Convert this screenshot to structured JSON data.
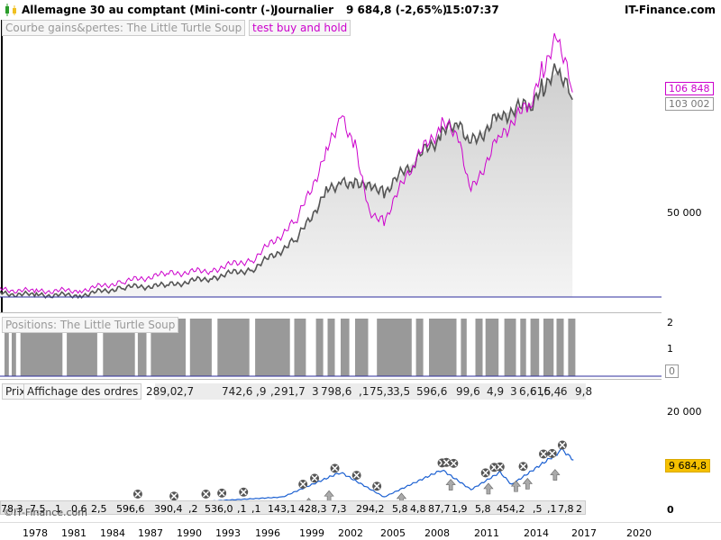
{
  "header": {
    "title": "Allemagne 30 au comptant (Mini-contr (-)",
    "period": "Journalier",
    "price_change": "9 684,8 (-2,65%)",
    "time": "15:07:37",
    "brand": "IT-Finance.com"
  },
  "panel_equity": {
    "label": "Courbe gains&pertes: The Little Turtle Soup",
    "label2": "test buy and hold",
    "axis_label": "50 000",
    "value_magenta": "106 848",
    "value_gray": "103 002"
  },
  "panel_positions": {
    "label": "Positions: The Little Turtle Soup",
    "ticks": [
      "2",
      "1",
      "0"
    ],
    "value_box": "0"
  },
  "panel_price": {
    "label_prix": "Prix",
    "label_orders": "Affichage des ordres",
    "axis_top": "20 000",
    "axis_bottom": "0",
    "value_box": "9 684,8",
    "watermark": "©IT-Finance.com",
    "position_values": [
      "289,0",
      "2,7",
      "742,6",
      ",9",
      ",2",
      "91,7",
      "3",
      "798,6",
      ",1",
      "75,3",
      "3,5",
      "596,6",
      "99,6",
      "4,9",
      "3",
      "6",
      "616,4",
      ",6",
      ",5",
      ",6",
      "9,8"
    ],
    "order_values": [
      "78,3",
      "7,5",
      "1",
      "0,6",
      "2,5",
      "596,6",
      "390,4",
      ",2",
      "536,0",
      ",1",
      ",1",
      "143,1",
      "428,3",
      "7,3",
      "294,2",
      "5,8",
      "4,8",
      "87,7",
      "1,9",
      "5,8",
      "454,2",
      ",5",
      ",1",
      "7,8",
      "2"
    ]
  },
  "x_axis": [
    "1978",
    "1981",
    "1984",
    "1987",
    "1990",
    "1993",
    "1996",
    "1999",
    "2002",
    "2005",
    "2008",
    "2011",
    "2014",
    "2017",
    "2020"
  ],
  "colors": {
    "equity": "#888888",
    "buyhold": "#cc00cc",
    "fill": "#e8e8e8",
    "baseline": "#2c2c9c",
    "price_up": "#1a5fd1",
    "price_down": "#d01010",
    "value_box_price": "#f5c000"
  },
  "chart_data": {
    "type": "line",
    "title": "",
    "x": [
      "1976",
      "1979",
      "1982",
      "1985",
      "1988",
      "1991",
      "1994",
      "1997",
      "1999",
      "2000",
      "2001",
      "2002",
      "2003",
      "2005",
      "2007",
      "2008",
      "2009",
      "2011",
      "2013",
      "2014",
      "2015",
      "2016"
    ],
    "series": [
      {
        "name": "Courbe gains&pertes: The Little Turtle Soup",
        "values": [
          2000,
          1000,
          1000,
          5000,
          6000,
          10000,
          15000,
          30000,
          55000,
          60000,
          60000,
          60000,
          55000,
          70000,
          85000,
          90000,
          80000,
          95000,
          100000,
          110000,
          118000,
          103002
        ]
      },
      {
        "name": "test buy and hold",
        "values": [
          4000,
          3000,
          3500,
          8000,
          12000,
          14000,
          20000,
          40000,
          75000,
          95000,
          80000,
          45000,
          40000,
          70000,
          90000,
          85000,
          55000,
          85000,
          100000,
          120000,
          135000,
          106848
        ]
      }
    ],
    "ylim": [
      0,
      140000
    ]
  }
}
